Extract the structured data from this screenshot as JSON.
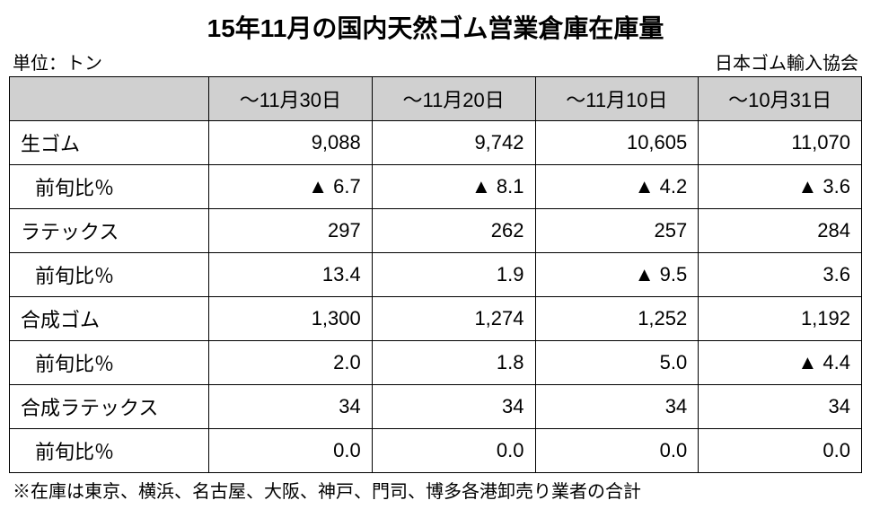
{
  "title": "15年11月の国内天然ゴム営業倉庫在庫量",
  "unit_label": "単位：トン",
  "source_label": "日本ゴム輸入協会",
  "columns": [
    "～11月30日",
    "～11月20日",
    "～11月10日",
    "～10月31日"
  ],
  "rows": [
    {
      "label": "生ゴム",
      "indent": false,
      "values": [
        "9,088",
        "9,742",
        "10,605",
        "11,070"
      ]
    },
    {
      "label": "前旬比％",
      "indent": true,
      "values": [
        "▲ 6.7",
        "▲ 8.1",
        "▲ 4.2",
        "▲ 3.6"
      ]
    },
    {
      "label": "ラテックス",
      "indent": false,
      "values": [
        "297",
        "262",
        "257",
        "284"
      ]
    },
    {
      "label": "前旬比％",
      "indent": true,
      "values": [
        "13.4",
        "1.9",
        "▲ 9.5",
        "3.6"
      ]
    },
    {
      "label": "合成ゴム",
      "indent": false,
      "values": [
        "1,300",
        "1,274",
        "1,252",
        "1,192"
      ]
    },
    {
      "label": "前旬比％",
      "indent": true,
      "values": [
        "2.0",
        "1.8",
        "5.0",
        "▲ 4.4"
      ]
    },
    {
      "label": "合成ラテックス",
      "indent": false,
      "values": [
        "34",
        "34",
        "34",
        "34"
      ]
    },
    {
      "label": "前旬比％",
      "indent": true,
      "values": [
        "0.0",
        "0.0",
        "0.0",
        "0.0"
      ]
    }
  ],
  "footnote": "※在庫は東京、横浜、名古屋、大阪、神戸、門司、博多各港卸売り業者の合計"
}
